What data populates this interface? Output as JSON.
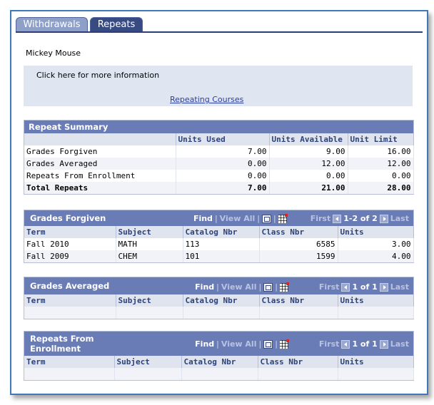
{
  "tabs": [
    {
      "label": "Withdrawals"
    },
    {
      "label": "Repeats"
    }
  ],
  "student_name": "Mickey Mouse",
  "info": {
    "text": "Click here for more information",
    "link": "Repeating Courses"
  },
  "summary": {
    "title": "Repeat Summary",
    "columns": [
      "",
      "Units Used",
      "Units Available",
      "Unit Limit"
    ],
    "rows": [
      {
        "label": "Grades Forgiven",
        "used": "7.00",
        "available": "9.00",
        "limit": "16.00"
      },
      {
        "label": "Grades Averaged",
        "used": "0.00",
        "available": "12.00",
        "limit": "12.00"
      },
      {
        "label": "Repeats From Enrollment",
        "used": "0.00",
        "available": "0.00",
        "limit": "0.00"
      },
      {
        "label": "Total Repeats",
        "used": "7.00",
        "available": "21.00",
        "limit": "28.00"
      }
    ]
  },
  "nav_labels": {
    "find": "Find",
    "view_all": "View All",
    "first": "First",
    "last": "Last",
    "sep": "|"
  },
  "forgiven": {
    "title": "Grades Forgiven",
    "range": "1-2 of 2",
    "columns": [
      "Term",
      "Subject",
      "Catalog Nbr",
      "Class Nbr",
      "Units"
    ],
    "rows": [
      {
        "term": "Fall 2010",
        "subject": "MATH",
        "catalog": "113",
        "class": "6585",
        "units": "3.00"
      },
      {
        "term": "Fall 2009",
        "subject": "CHEM",
        "catalog": "101",
        "class": "1599",
        "units": "4.00"
      }
    ]
  },
  "averaged": {
    "title": "Grades Averaged",
    "range": "1 of 1",
    "columns": [
      "Term",
      "Subject",
      "Catalog Nbr",
      "Class Nbr",
      "Units"
    ]
  },
  "enrollment": {
    "title_line1": "Repeats From",
    "title_line2": "Enrollment",
    "range": "1 of 1",
    "columns": [
      "Term",
      "Subject",
      "Catalog Nbr",
      "Class Nbr",
      "Units"
    ]
  }
}
